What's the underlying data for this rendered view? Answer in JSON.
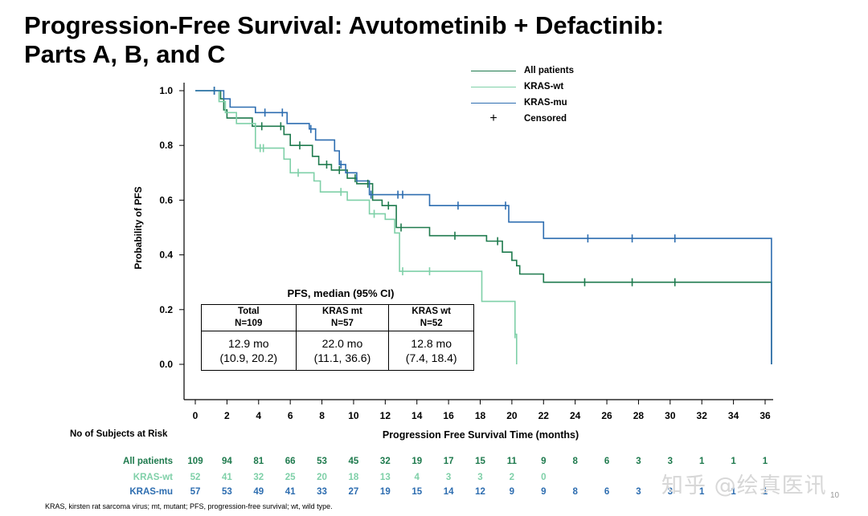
{
  "page": {
    "title_line1": "Progression-Free Survival: Avutometinib + Defactinib:",
    "title_line2": "Parts A, B, and C",
    "footnote": "KRAS, kirsten rat sarcoma virus; mt, mutant; PFS, progression-free survival; wt, wild type.",
    "watermark": "知乎 @绘真医讯",
    "page_number": "10"
  },
  "chart_data": {
    "type": "line",
    "step": true,
    "title": "",
    "xlabel": "Progression Free Survival Time (months)",
    "ylabel": "Probability of PFS",
    "xlim": [
      0,
      36
    ],
    "ylim": [
      0,
      1.0
    ],
    "x_ticks": [
      0,
      2,
      4,
      6,
      8,
      10,
      12,
      14,
      16,
      18,
      20,
      22,
      24,
      26,
      28,
      30,
      32,
      34,
      36
    ],
    "y_ticks": [
      0.0,
      0.2,
      0.4,
      0.6,
      0.8,
      1.0
    ],
    "y_tick_labels": [
      "0.0",
      "0.2",
      "0.4",
      "0.6",
      "0.8",
      "1.0"
    ],
    "grid": false,
    "legend_position": "top-right",
    "legend": [
      {
        "label": "All patients",
        "color": "#1e7a4d",
        "kind": "line"
      },
      {
        "label": "KRAS-wt",
        "color": "#7fd0a8",
        "kind": "line"
      },
      {
        "label": "KRAS-mu",
        "color": "#2d6db0",
        "kind": "line"
      },
      {
        "label": "Censored",
        "color": "#000000",
        "kind": "censor"
      }
    ],
    "series": [
      {
        "name": "All patients",
        "color": "#1e7a4d",
        "points": [
          [
            0,
            1.0
          ],
          [
            1.6,
            1.0
          ],
          [
            1.6,
            0.97
          ],
          [
            1.8,
            0.97
          ],
          [
            1.8,
            0.93
          ],
          [
            2.0,
            0.93
          ],
          [
            2.0,
            0.9
          ],
          [
            3.6,
            0.9
          ],
          [
            3.6,
            0.87
          ],
          [
            5.6,
            0.87
          ],
          [
            5.6,
            0.84
          ],
          [
            6.0,
            0.84
          ],
          [
            6.0,
            0.8
          ],
          [
            7.4,
            0.8
          ],
          [
            7.4,
            0.76
          ],
          [
            7.8,
            0.76
          ],
          [
            7.8,
            0.73
          ],
          [
            8.6,
            0.73
          ],
          [
            8.6,
            0.71
          ],
          [
            9.6,
            0.71
          ],
          [
            9.6,
            0.68
          ],
          [
            10.2,
            0.68
          ],
          [
            10.2,
            0.66
          ],
          [
            11.2,
            0.66
          ],
          [
            11.2,
            0.6
          ],
          [
            11.8,
            0.6
          ],
          [
            11.8,
            0.58
          ],
          [
            12.7,
            0.58
          ],
          [
            12.7,
            0.5
          ],
          [
            14.8,
            0.5
          ],
          [
            14.8,
            0.47
          ],
          [
            18.4,
            0.47
          ],
          [
            18.4,
            0.45
          ],
          [
            19.4,
            0.45
          ],
          [
            19.4,
            0.41
          ],
          [
            20.0,
            0.41
          ],
          [
            20.0,
            0.38
          ],
          [
            20.3,
            0.38
          ],
          [
            20.3,
            0.36
          ],
          [
            20.5,
            0.36
          ],
          [
            20.5,
            0.33
          ],
          [
            22.0,
            0.33
          ],
          [
            22.0,
            0.3
          ],
          [
            36.4,
            0.3
          ],
          [
            36.4,
            0.0
          ]
        ],
        "censor_x": [
          1.2,
          4.2,
          5.4,
          6.6,
          8.3,
          9.1,
          10.1,
          10.9,
          12.2,
          13.0,
          16.4,
          19.1,
          24.6,
          27.6,
          30.3
        ]
      },
      {
        "name": "KRAS-wt",
        "color": "#7fd0a8",
        "points": [
          [
            0,
            1.0
          ],
          [
            1.5,
            1.0
          ],
          [
            1.5,
            0.96
          ],
          [
            1.9,
            0.96
          ],
          [
            1.9,
            0.92
          ],
          [
            2.6,
            0.92
          ],
          [
            2.6,
            0.88
          ],
          [
            3.8,
            0.88
          ],
          [
            3.8,
            0.79
          ],
          [
            5.6,
            0.79
          ],
          [
            5.6,
            0.75
          ],
          [
            6.0,
            0.75
          ],
          [
            6.0,
            0.7
          ],
          [
            7.5,
            0.7
          ],
          [
            7.5,
            0.67
          ],
          [
            7.9,
            0.67
          ],
          [
            7.9,
            0.63
          ],
          [
            9.6,
            0.63
          ],
          [
            9.6,
            0.6
          ],
          [
            11.0,
            0.6
          ],
          [
            11.0,
            0.55
          ],
          [
            12.0,
            0.55
          ],
          [
            12.0,
            0.53
          ],
          [
            12.6,
            0.53
          ],
          [
            12.6,
            0.48
          ],
          [
            12.9,
            0.48
          ],
          [
            12.9,
            0.34
          ],
          [
            18.1,
            0.34
          ],
          [
            18.1,
            0.23
          ],
          [
            20.2,
            0.23
          ],
          [
            20.2,
            0.11
          ],
          [
            20.3,
            0.11
          ],
          [
            20.3,
            0.0
          ]
        ],
        "censor_x": [
          4.1,
          4.3,
          6.5,
          9.2,
          11.3,
          13.1,
          14.8,
          20.2
        ]
      },
      {
        "name": "KRAS-mu",
        "color": "#2d6db0",
        "points": [
          [
            0,
            1.0
          ],
          [
            1.8,
            1.0
          ],
          [
            1.8,
            0.97
          ],
          [
            2.2,
            0.97
          ],
          [
            2.2,
            0.94
          ],
          [
            3.8,
            0.94
          ],
          [
            3.8,
            0.92
          ],
          [
            5.8,
            0.92
          ],
          [
            5.8,
            0.88
          ],
          [
            7.2,
            0.88
          ],
          [
            7.2,
            0.86
          ],
          [
            7.6,
            0.86
          ],
          [
            7.6,
            0.82
          ],
          [
            8.8,
            0.82
          ],
          [
            8.8,
            0.78
          ],
          [
            9.1,
            0.78
          ],
          [
            9.1,
            0.73
          ],
          [
            9.5,
            0.73
          ],
          [
            9.5,
            0.7
          ],
          [
            10.2,
            0.7
          ],
          [
            10.2,
            0.67
          ],
          [
            11.0,
            0.67
          ],
          [
            11.0,
            0.62
          ],
          [
            14.8,
            0.62
          ],
          [
            14.8,
            0.58
          ],
          [
            19.8,
            0.58
          ],
          [
            19.8,
            0.52
          ],
          [
            22.0,
            0.52
          ],
          [
            22.0,
            0.46
          ],
          [
            36.4,
            0.46
          ],
          [
            36.4,
            0.0
          ]
        ],
        "censor_x": [
          1.2,
          4.4,
          5.5,
          7.3,
          9.2,
          11.1,
          12.8,
          13.1,
          16.6,
          19.6,
          24.8,
          27.6,
          30.3
        ]
      }
    ]
  },
  "median_table": {
    "title": "PFS, median (95% CI)",
    "columns": [
      {
        "header_1": "Total",
        "header_2": "N=109",
        "median": "12.9 mo",
        "ci": "(10.9, 20.2)"
      },
      {
        "header_1": "KRAS mt",
        "header_2": "N=57",
        "median": "22.0 mo",
        "ci": "(11.1, 36.6)"
      },
      {
        "header_1": "KRAS wt",
        "header_2": "N=52",
        "median": "12.8 mo",
        "ci": "(7.4, 18.4)"
      }
    ]
  },
  "risk_table": {
    "title": "No of Subjects at Risk",
    "rows": [
      {
        "label": "All patients",
        "color": "#1e7a4d",
        "values": [
          "109",
          "94",
          "81",
          "66",
          "53",
          "45",
          "32",
          "19",
          "17",
          "15",
          "11",
          "9",
          "8",
          "6",
          "3",
          "3",
          "1",
          "1",
          "1"
        ]
      },
      {
        "label": "KRAS-wt",
        "color": "#7fd0a8",
        "values": [
          "52",
          "41",
          "32",
          "25",
          "20",
          "18",
          "13",
          "4",
          "3",
          "3",
          "2",
          "0"
        ]
      },
      {
        "label": "KRAS-mu",
        "color": "#2d6db0",
        "values": [
          "57",
          "53",
          "49",
          "41",
          "33",
          "27",
          "19",
          "15",
          "14",
          "12",
          "9",
          "9",
          "8",
          "6",
          "3",
          "3",
          "1",
          "1",
          "1"
        ]
      }
    ]
  }
}
